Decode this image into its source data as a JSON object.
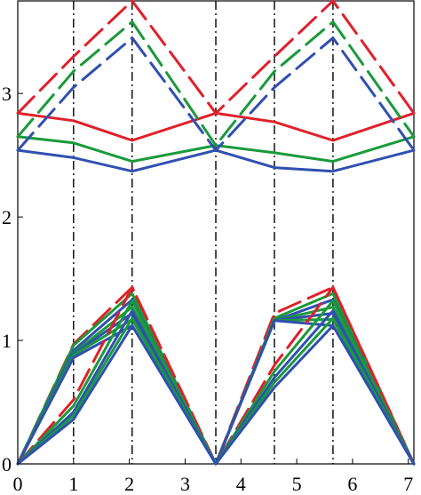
{
  "chart_data": {
    "type": "line",
    "title": "",
    "xlabel": "",
    "ylabel": "",
    "xlim": [
      0,
      7.1
    ],
    "ylim": [
      0,
      3.75
    ],
    "x_ticks": [
      0,
      1,
      2,
      3,
      4,
      5,
      6,
      7
    ],
    "x_tick_labels": [
      "0",
      "1",
      "2",
      "3",
      "4",
      "5",
      "6",
      "7"
    ],
    "y_ticks": [
      0,
      1,
      2,
      3
    ],
    "y_tick_labels": [
      "0",
      "1",
      "2",
      "3"
    ],
    "grid": false,
    "vertical_lines": [
      1.0,
      2.05,
      3.55,
      4.6,
      5.65
    ],
    "colors": {
      "red": "#e0202a",
      "green": "#1a9a3a",
      "blue": "#3050b0",
      "axis": "#000000"
    },
    "series": [
      {
        "color": "red",
        "style": "solid",
        "x": [
          0,
          1.0,
          2.05,
          3.55,
          4.6,
          5.65,
          7.1
        ],
        "y": [
          2.84,
          2.78,
          2.62,
          2.84,
          2.77,
          2.62,
          2.84
        ]
      },
      {
        "color": "green",
        "style": "solid",
        "x": [
          0,
          1.0,
          2.05,
          3.55,
          4.6,
          5.65,
          7.1
        ],
        "y": [
          2.65,
          2.6,
          2.45,
          2.58,
          2.52,
          2.45,
          2.65
        ]
      },
      {
        "color": "blue",
        "style": "solid",
        "x": [
          0,
          1.0,
          2.05,
          3.55,
          4.6,
          5.65,
          7.1
        ],
        "y": [
          2.54,
          2.48,
          2.37,
          2.54,
          2.4,
          2.37,
          2.54
        ]
      },
      {
        "color": "red",
        "style": "dashed",
        "x": [
          0,
          1.0,
          2.05,
          3.55,
          4.6,
          5.65,
          7.1
        ],
        "y": [
          2.84,
          3.3,
          3.75,
          2.84,
          3.3,
          3.75,
          2.84
        ]
      },
      {
        "color": "green",
        "style": "dashed",
        "x": [
          0,
          1.0,
          2.05,
          3.55,
          4.6,
          5.65,
          7.1
        ],
        "y": [
          2.65,
          3.18,
          3.58,
          2.58,
          3.18,
          3.58,
          2.65
        ]
      },
      {
        "color": "blue",
        "style": "dashed",
        "x": [
          0,
          1.0,
          2.05,
          3.55,
          4.6,
          5.65,
          7.1
        ],
        "y": [
          2.54,
          3.05,
          3.45,
          2.54,
          3.05,
          3.45,
          2.54
        ]
      },
      {
        "color": "red",
        "style": "dashed",
        "x": [
          0,
          1.0,
          2.05,
          3.55,
          4.6,
          5.65,
          7.1
        ],
        "y": [
          0,
          0.97,
          1.43,
          0,
          1.22,
          1.43,
          0
        ]
      },
      {
        "color": "green",
        "style": "solid",
        "x": [
          0,
          1.0,
          2.05,
          3.55,
          4.6,
          5.65,
          7.1
        ],
        "y": [
          0,
          0.96,
          1.38,
          0,
          1.18,
          1.38,
          0
        ]
      },
      {
        "color": "blue",
        "style": "solid",
        "x": [
          0,
          1.0,
          2.05,
          3.55,
          4.6,
          5.65,
          7.1
        ],
        "y": [
          0,
          0.92,
          1.33,
          0,
          1.16,
          1.33,
          0
        ]
      },
      {
        "color": "green",
        "style": "solid",
        "x": [
          0,
          1.0,
          2.05,
          3.55,
          4.6,
          5.65,
          7.1
        ],
        "y": [
          0,
          0.9,
          1.27,
          0,
          1.16,
          1.27,
          0
        ]
      },
      {
        "color": "blue",
        "style": "solid",
        "x": [
          0,
          1.0,
          2.05,
          3.55,
          4.6,
          5.65,
          7.1
        ],
        "y": [
          0,
          0.89,
          1.22,
          0,
          1.16,
          1.22,
          0
        ]
      },
      {
        "color": "green",
        "style": "solid",
        "x": [
          0,
          1.0,
          2.05,
          3.55,
          4.6,
          5.65,
          7.1
        ],
        "y": [
          0,
          0.88,
          1.17,
          0,
          1.16,
          1.17,
          0
        ]
      },
      {
        "color": "blue",
        "style": "solid",
        "x": [
          0,
          1.0,
          2.05,
          3.55,
          4.6,
          5.65,
          7.1
        ],
        "y": [
          0,
          0.86,
          1.12,
          0,
          1.16,
          1.12,
          0
        ]
      },
      {
        "color": "red",
        "style": "dashed",
        "x": [
          0,
          1.0,
          2.05,
          3.55,
          4.6,
          5.65,
          7.1
        ],
        "y": [
          0,
          0.52,
          1.43,
          0,
          0.8,
          1.43,
          0
        ]
      },
      {
        "color": "green",
        "style": "solid",
        "x": [
          0,
          1.0,
          2.05,
          3.55,
          4.6,
          5.65,
          7.1
        ],
        "y": [
          0,
          0.47,
          1.32,
          0,
          0.75,
          1.32,
          0
        ]
      },
      {
        "color": "blue",
        "style": "solid",
        "x": [
          0,
          1.0,
          2.05,
          3.55,
          4.6,
          5.65,
          7.1
        ],
        "y": [
          0,
          0.42,
          1.24,
          0,
          0.7,
          1.24,
          0
        ]
      },
      {
        "color": "green",
        "style": "solid",
        "x": [
          0,
          1.0,
          2.05,
          3.55,
          4.6,
          5.65,
          7.1
        ],
        "y": [
          0,
          0.39,
          1.18,
          0,
          0.66,
          1.18,
          0
        ]
      },
      {
        "color": "blue",
        "style": "solid",
        "x": [
          0,
          1.0,
          2.05,
          3.55,
          4.6,
          5.65,
          7.1
        ],
        "y": [
          0,
          0.36,
          1.12,
          0,
          0.62,
          1.12,
          0
        ]
      }
    ]
  }
}
